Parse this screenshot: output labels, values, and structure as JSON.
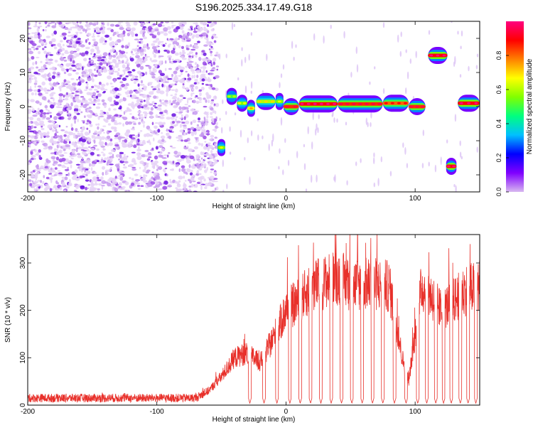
{
  "title": "S196.2025.334.17.49.G18",
  "chart_data": [
    {
      "type": "heatmap",
      "name": "spectrogram",
      "xlabel": "Height of straight line (km)",
      "ylabel": "Frequency (Hz)",
      "xlim": [
        -200,
        150
      ],
      "ylim": [
        -25,
        25
      ],
      "xticks": [
        -200,
        -100,
        0,
        100
      ],
      "yticks": [
        -20,
        -10,
        0,
        10,
        20
      ],
      "colorbar": {
        "label": "Normalized spectral amplitude",
        "range": [
          0,
          1
        ],
        "ticks": [
          0.0,
          0.2,
          0.4,
          0.6,
          0.8
        ],
        "tick_labels": [
          "0.0",
          "0.2",
          "0.4",
          "0.6",
          "0.8"
        ],
        "colors": [
          "#d8b8f0",
          "#8000ff",
          "#0000ff",
          "#00c0ff",
          "#00ff80",
          "#80ff00",
          "#ffff00",
          "#ff8000",
          "#ff0000",
          "#ff0080"
        ]
      },
      "noise_region_x": [
        -200,
        -53
      ],
      "signal_track": [
        {
          "x": [
            -53,
            -47
          ],
          "freq": -12,
          "amplitude": 0.55
        },
        {
          "x": [
            -46,
            -38
          ],
          "freq": 3,
          "amplitude": 0.5
        },
        {
          "x": [
            -38,
            -30
          ],
          "freq": 1,
          "amplitude": 0.55
        },
        {
          "x": [
            -30,
            -24
          ],
          "freq": -0.5,
          "amplitude": 0.65
        },
        {
          "x": [
            -23,
            -8
          ],
          "freq": 1.5,
          "amplitude": 0.6
        },
        {
          "x": [
            -8,
            -2
          ],
          "freq": 1.5,
          "amplitude": 0.55
        },
        {
          "x": [
            -2,
            10
          ],
          "freq": 0,
          "amplitude": 0.85
        },
        {
          "x": [
            10,
            40
          ],
          "freq": 0.8,
          "amplitude": 0.9
        },
        {
          "x": [
            40,
            75
          ],
          "freq": 0.8,
          "amplitude": 0.85
        },
        {
          "x": [
            75,
            95
          ],
          "freq": 1,
          "amplitude": 0.8
        },
        {
          "x": [
            95,
            108
          ],
          "freq": 0,
          "amplitude": 0.85
        },
        {
          "x": [
            110,
            125
          ],
          "freq": 15,
          "amplitude": 0.9
        },
        {
          "x": [
            124,
            132
          ],
          "freq": -17.5,
          "amplitude": 0.9
        },
        {
          "x": [
            133,
            150
          ],
          "freq": 1,
          "amplitude": 0.9
        }
      ]
    },
    {
      "type": "line",
      "name": "snr",
      "xlabel": "Height of straight line (km)",
      "ylabel": "SNR (10 * v/v)",
      "xlim": [
        -200,
        150
      ],
      "ylim": [
        0,
        360
      ],
      "xticks": [
        -200,
        -100,
        0,
        100
      ],
      "yticks": [
        0,
        100,
        200,
        300
      ],
      "color": "#e8302a",
      "envelope": [
        {
          "x": -200,
          "y": 15
        },
        {
          "x": -70,
          "y": 15
        },
        {
          "x": -60,
          "y": 30
        },
        {
          "x": -50,
          "y": 60
        },
        {
          "x": -40,
          "y": 100
        },
        {
          "x": -30,
          "y": 110
        },
        {
          "x": -20,
          "y": 90
        },
        {
          "x": -10,
          "y": 140
        },
        {
          "x": 0,
          "y": 200
        },
        {
          "x": 10,
          "y": 220
        },
        {
          "x": 20,
          "y": 250
        },
        {
          "x": 30,
          "y": 260
        },
        {
          "x": 40,
          "y": 270
        },
        {
          "x": 50,
          "y": 255
        },
        {
          "x": 60,
          "y": 255
        },
        {
          "x": 70,
          "y": 255
        },
        {
          "x": 80,
          "y": 250
        },
        {
          "x": 85,
          "y": 180
        },
        {
          "x": 90,
          "y": 100
        },
        {
          "x": 95,
          "y": 50
        },
        {
          "x": 100,
          "y": 150
        },
        {
          "x": 105,
          "y": 250
        },
        {
          "x": 110,
          "y": 240
        },
        {
          "x": 120,
          "y": 200
        },
        {
          "x": 130,
          "y": 220
        },
        {
          "x": 140,
          "y": 245
        },
        {
          "x": 150,
          "y": 250
        }
      ],
      "dropouts_x": [
        -28,
        -17,
        -7,
        3,
        11,
        19,
        27,
        35,
        43,
        51,
        59,
        67,
        75,
        84,
        93,
        102,
        109,
        116,
        122,
        128,
        135,
        141,
        147
      ]
    }
  ]
}
